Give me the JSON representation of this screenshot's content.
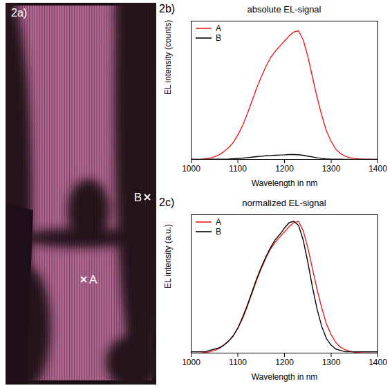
{
  "chart_data": [
    {
      "type": "line",
      "panel": "2b)",
      "title": "absolute EL-signal",
      "x_label": "Wavelength in nm",
      "y_label": "EL intensity (counts)",
      "x": [
        1000,
        1010,
        1020,
        1030,
        1040,
        1050,
        1060,
        1070,
        1080,
        1090,
        1100,
        1110,
        1120,
        1130,
        1140,
        1150,
        1160,
        1170,
        1180,
        1190,
        1200,
        1210,
        1220,
        1230,
        1240,
        1250,
        1260,
        1270,
        1280,
        1290,
        1300,
        1310,
        1320,
        1330,
        1340,
        1350,
        1360,
        1370,
        1380,
        1390,
        1400
      ],
      "xlim": [
        1000,
        1400
      ],
      "xticks": [
        1000,
        1100,
        1200,
        1300,
        1400
      ],
      "ylim": [
        0,
        100
      ],
      "tick_labels": "x",
      "legend": "top-left",
      "series": [
        {
          "name": "A",
          "color": "#e8201c",
          "values": [
            0,
            0,
            0,
            0.5,
            0.9,
            1.9,
            3.3,
            5.6,
            8.4,
            12.1,
            17.7,
            24.2,
            32.6,
            41.9,
            51.2,
            59.5,
            67,
            73.5,
            78.1,
            81.8,
            85.6,
            89.3,
            92.1,
            93,
            86.5,
            74.4,
            59.5,
            44.6,
            31.6,
            20.5,
            13,
            7.4,
            4.2,
            2.3,
            1.2,
            0.7,
            0.4,
            0.2,
            0.1,
            0,
            0
          ]
        },
        {
          "name": "B",
          "color": "#000000",
          "values": [
            0,
            0,
            0,
            0,
            0.1,
            0.1,
            0.1,
            0.2,
            0.3,
            0.5,
            0.7,
            0.9,
            1.3,
            1.6,
            2,
            2.3,
            2.6,
            2.8,
            3,
            3.2,
            3.3,
            3.5,
            3.5,
            3.4,
            3,
            2.4,
            1.8,
            1.2,
            0.7,
            0.4,
            0.2,
            0.1,
            0.1,
            0,
            0,
            0,
            0,
            0,
            0,
            0,
            0
          ]
        }
      ]
    },
    {
      "type": "line",
      "panel": "2c)",
      "title": "normalized EL-signal",
      "x_label": "Wavelength in nm",
      "y_label": "EL intensity (a.u.)",
      "x": [
        1000,
        1010,
        1020,
        1030,
        1040,
        1050,
        1060,
        1070,
        1080,
        1090,
        1100,
        1110,
        1120,
        1130,
        1140,
        1150,
        1160,
        1170,
        1180,
        1190,
        1200,
        1210,
        1220,
        1230,
        1240,
        1250,
        1260,
        1270,
        1280,
        1290,
        1300,
        1310,
        1320,
        1330,
        1340,
        1350,
        1360,
        1370,
        1380,
        1390,
        1400
      ],
      "xlim": [
        1000,
        1400
      ],
      "xticks": [
        1000,
        1100,
        1200,
        1300,
        1400
      ],
      "ylim": [
        0,
        1.05
      ],
      "tick_labels": "x",
      "legend": "top-left",
      "series": [
        {
          "name": "A",
          "color": "#e8201c",
          "values": [
            0,
            0,
            0,
            0.005,
            0.01,
            0.02,
            0.035,
            0.06,
            0.09,
            0.13,
            0.19,
            0.26,
            0.35,
            0.45,
            0.55,
            0.64,
            0.72,
            0.79,
            0.84,
            0.88,
            0.92,
            0.96,
            0.99,
            1.0,
            0.93,
            0.8,
            0.64,
            0.48,
            0.34,
            0.22,
            0.14,
            0.08,
            0.045,
            0.025,
            0.013,
            0.007,
            0.004,
            0.002,
            0.001,
            0,
            0
          ]
        },
        {
          "name": "B",
          "color": "#000000",
          "values": [
            0.01,
            0.01,
            0.01,
            0.01,
            0.02,
            0.03,
            0.04,
            0.06,
            0.09,
            0.13,
            0.19,
            0.27,
            0.36,
            0.46,
            0.56,
            0.65,
            0.73,
            0.8,
            0.86,
            0.9,
            0.95,
            0.99,
            1.0,
            0.97,
            0.86,
            0.69,
            0.5,
            0.33,
            0.2,
            0.11,
            0.06,
            0.03,
            0.02,
            0.01,
            0.01,
            0.01,
            0.01,
            0.01,
            0.01,
            0.01,
            0.01
          ]
        }
      ]
    }
  ],
  "image_panel": {
    "panel": "2a)",
    "markers": [
      {
        "label": "A",
        "marker": "x"
      },
      {
        "label": "B",
        "marker": "x"
      }
    ]
  }
}
